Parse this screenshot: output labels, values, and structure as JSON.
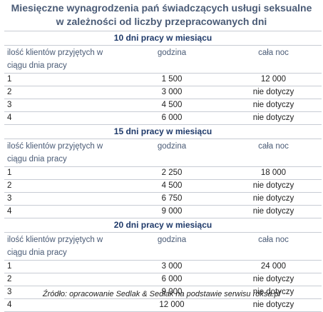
{
  "title_line1": "Miesięczne wynagrodzenia pań świadczących usługi seksualne",
  "title_line2": "w zależności od liczby przepracowanych dni",
  "sections": [
    {
      "heading": "10 dni pracy w miesiącu",
      "col1": "ilość klientów przyjętych w ciągu dnia pracy",
      "col2": "godzina",
      "col3": "cała noc",
      "rows": [
        {
          "n": "1",
          "hour": "1 500",
          "night": "12 000"
        },
        {
          "n": "2",
          "hour": "3 000",
          "night": "nie dotyczy"
        },
        {
          "n": "3",
          "hour": "4 500",
          "night": "nie dotyczy"
        },
        {
          "n": "4",
          "hour": "6 000",
          "night": "nie dotyczy"
        }
      ]
    },
    {
      "heading": "15 dni pracy w miesiącu",
      "col1": "ilość klientów przyjętych w ciągu dnia pracy",
      "col2": "godzina",
      "col3": "cała noc",
      "rows": [
        {
          "n": "1",
          "hour": "2 250",
          "night": "18 000"
        },
        {
          "n": "2",
          "hour": "4 500",
          "night": "nie dotyczy"
        },
        {
          "n": "3",
          "hour": "6 750",
          "night": "nie dotyczy"
        },
        {
          "n": "4",
          "hour": "9 000",
          "night": "nie dotyczy"
        }
      ]
    },
    {
      "heading": "20 dni pracy w miesiącu",
      "col1": "ilość klientów przyjętych w ciągu dnia pracy",
      "col2": "godzina",
      "col3": "cała noc",
      "rows": [
        {
          "n": "1",
          "hour": "3 000",
          "night": "24 000"
        },
        {
          "n": "2",
          "hour": "6 000",
          "night": "nie dotyczy"
        },
        {
          "n": "3",
          "hour": "9 000",
          "night": "nie dotyczy"
        },
        {
          "n": "4",
          "hour": "12 000",
          "night": "nie dotyczy"
        }
      ]
    }
  ],
  "source": "Źródło: opracowanie Sedlak & Sedlak na podstawie serwisu roksa.pl"
}
